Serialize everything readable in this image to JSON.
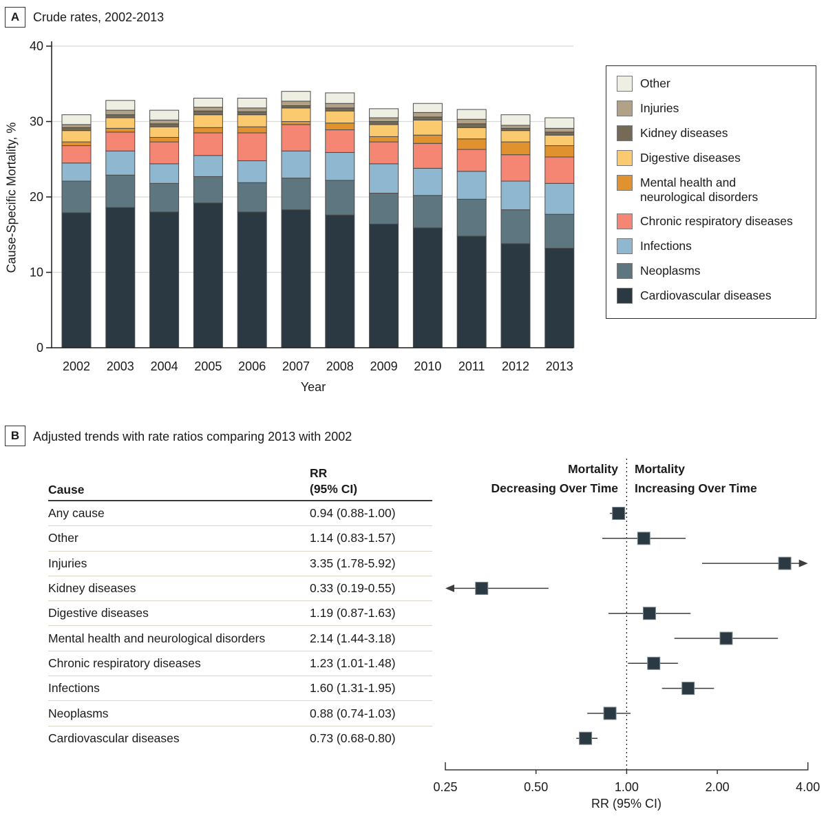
{
  "chart_data": [
    {
      "id": "panelA",
      "type": "bar",
      "stacked": true,
      "panel_label": "A",
      "title": "Crude rates, 2002-2013",
      "xlabel": "Year",
      "ylabel": "Cause-Specific Mortality, %",
      "ylim": [
        0,
        40
      ],
      "yticks": [
        0,
        10,
        20,
        30,
        40
      ],
      "grid": "horizontal",
      "legend_position": "right-box",
      "categories": [
        "2002",
        "2003",
        "2004",
        "2005",
        "2006",
        "2007",
        "2008",
        "2009",
        "2010",
        "2011",
        "2012",
        "2013"
      ],
      "series": [
        {
          "name": "Cardiovascular diseases",
          "color": "#2b3a42",
          "values": [
            17.9,
            18.6,
            18.0,
            19.2,
            18.0,
            18.3,
            17.6,
            16.4,
            15.9,
            14.8,
            13.8,
            13.2
          ]
        },
        {
          "name": "Neoplasms",
          "color": "#5d7680",
          "values": [
            4.2,
            4.3,
            3.8,
            3.5,
            3.9,
            4.2,
            4.6,
            4.1,
            4.3,
            4.9,
            4.5,
            4.5
          ]
        },
        {
          "name": "Infections",
          "color": "#8fb8d0",
          "values": [
            2.4,
            3.2,
            2.6,
            2.8,
            2.9,
            3.6,
            3.7,
            3.9,
            3.6,
            3.7,
            3.8,
            4.1
          ]
        },
        {
          "name": "Chronic respiratory diseases",
          "color": "#f58673",
          "values": [
            2.3,
            2.5,
            2.9,
            3.0,
            3.7,
            3.5,
            3.0,
            2.9,
            3.3,
            2.9,
            3.5,
            3.5
          ]
        },
        {
          "name": "Mental health and neurological disorders",
          "color": "#e0922f",
          "values": [
            0.5,
            0.5,
            0.6,
            0.7,
            0.8,
            0.4,
            0.9,
            0.7,
            1.1,
            1.4,
            1.7,
            1.5
          ]
        },
        {
          "name": "Digestive diseases",
          "color": "#fbca6e",
          "values": [
            1.5,
            1.4,
            1.4,
            1.7,
            1.6,
            1.8,
            1.6,
            1.6,
            2.0,
            1.5,
            1.5,
            1.4
          ]
        },
        {
          "name": "Kidney diseases",
          "color": "#756a55",
          "values": [
            0.4,
            0.4,
            0.4,
            0.5,
            0.4,
            0.3,
            0.4,
            0.4,
            0.4,
            0.5,
            0.3,
            0.4
          ]
        },
        {
          "name": "Injuries",
          "color": "#b1a287",
          "values": [
            0.4,
            0.6,
            0.5,
            0.5,
            0.5,
            0.6,
            0.6,
            0.5,
            0.6,
            0.6,
            0.4,
            0.5
          ]
        },
        {
          "name": "Other",
          "color": "#efeee2",
          "values": [
            1.3,
            1.3,
            1.3,
            1.2,
            1.3,
            1.3,
            1.4,
            1.2,
            1.2,
            1.3,
            1.4,
            1.4
          ]
        }
      ],
      "legend": [
        {
          "lines": [
            "Other"
          ],
          "color": "#efeee2"
        },
        {
          "lines": [
            "Injuries"
          ],
          "color": "#b1a287"
        },
        {
          "lines": [
            "Kidney diseases"
          ],
          "color": "#756a55"
        },
        {
          "lines": [
            "Digestive diseases"
          ],
          "color": "#fbca6e"
        },
        {
          "lines": [
            "Mental health and",
            "neurological disorders"
          ],
          "color": "#e0922f"
        },
        {
          "lines": [
            "Chronic respiratory diseases"
          ],
          "color": "#f58673"
        },
        {
          "lines": [
            "Infections"
          ],
          "color": "#8fb8d0"
        },
        {
          "lines": [
            "Neoplasms"
          ],
          "color": "#5d7680"
        },
        {
          "lines": [
            "Cardiovascular diseases"
          ],
          "color": "#2b3a42"
        }
      ]
    },
    {
      "id": "panelB",
      "type": "forest",
      "panel_label": "B",
      "title": "Adjusted trends with rate ratios comparing 2013 with 2002",
      "headers": {
        "left_line1": "Mortality",
        "left_line2": "Decreasing Over Time",
        "right_line1": "Mortality",
        "right_line2": "Increasing Over Time"
      },
      "table": {
        "col1_header": "Cause",
        "col2_header_line1": "RR",
        "col2_header_line2": "(95% CI)",
        "rows": [
          {
            "cause": "Any cause",
            "rr_text": "0.94 (0.88-1.00)",
            "rr": 0.94,
            "ci_low": 0.88,
            "ci_high": 1.0
          },
          {
            "cause": "Other",
            "rr_text": "1.14 (0.83-1.57)",
            "rr": 1.14,
            "ci_low": 0.83,
            "ci_high": 1.57
          },
          {
            "cause": "Injuries",
            "rr_text": "3.35 (1.78-5.92)",
            "rr": 3.35,
            "ci_low": 1.78,
            "ci_high": 5.92
          },
          {
            "cause": "Kidney diseases",
            "rr_text": "0.33 (0.19-0.55)",
            "rr": 0.33,
            "ci_low": 0.19,
            "ci_high": 0.55
          },
          {
            "cause": "Digestive diseases",
            "rr_text": "1.19 (0.87-1.63)",
            "rr": 1.19,
            "ci_low": 0.87,
            "ci_high": 1.63
          },
          {
            "cause": "Mental health and neurological disorders",
            "rr_text": "2.14 (1.44-3.18)",
            "rr": 2.14,
            "ci_low": 1.44,
            "ci_high": 3.18
          },
          {
            "cause": "Chronic respiratory diseases",
            "rr_text": "1.23 (1.01-1.48)",
            "rr": 1.23,
            "ci_low": 1.01,
            "ci_high": 1.48
          },
          {
            "cause": "Infections",
            "rr_text": "1.60 (1.31-1.95)",
            "rr": 1.6,
            "ci_low": 1.31,
            "ci_high": 1.95
          },
          {
            "cause": "Neoplasms",
            "rr_text": "0.88 (0.74-1.03)",
            "rr": 0.88,
            "ci_low": 0.74,
            "ci_high": 1.03
          },
          {
            "cause": "Cardiovascular diseases",
            "rr_text": "0.73 (0.68-0.80)",
            "rr": 0.73,
            "ci_low": 0.68,
            "ci_high": 0.8
          }
        ]
      },
      "axis": {
        "scale": "log2",
        "ticks": [
          0.25,
          0.5,
          1.0,
          2.0,
          4.0
        ],
        "tick_labels": [
          "0.25",
          "0.50",
          "1.00",
          "2.00",
          "4.00"
        ],
        "xlabel": "RR (95% CI)",
        "ref_line": 1.0
      },
      "style": {
        "marker_color": "#2b3a42",
        "marker_stroke": "#7e8d92",
        "line_color": "#3d3d3d"
      }
    }
  ]
}
